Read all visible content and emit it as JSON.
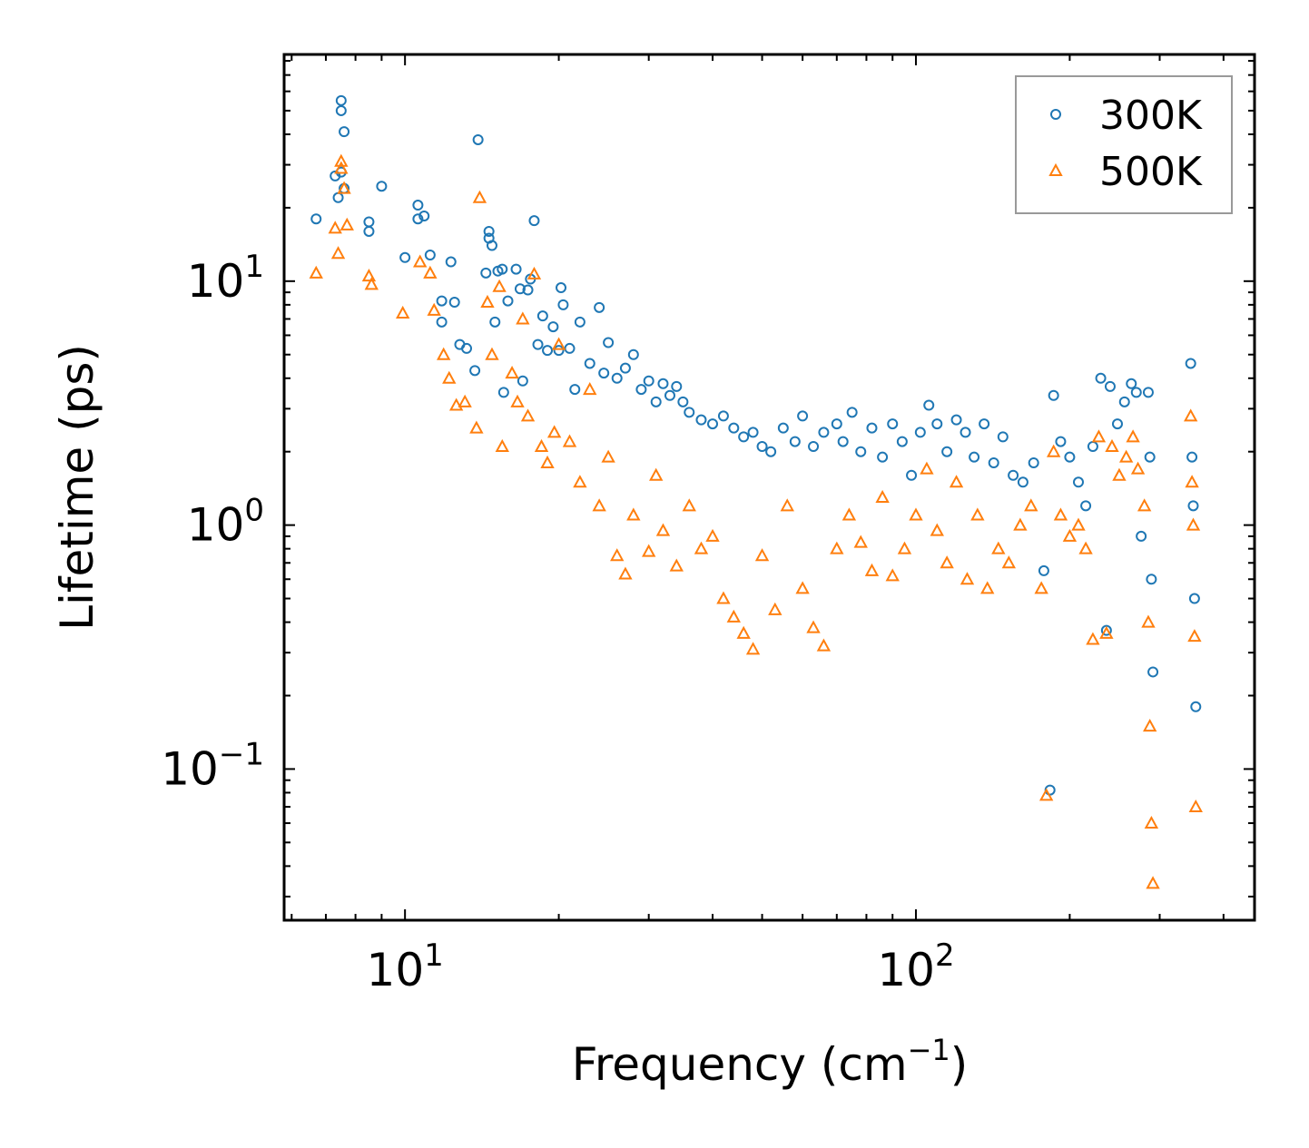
{
  "chart_data": {
    "type": "scatter",
    "xscale": "log",
    "yscale": "log",
    "xlabel": "Frequency (cm",
    "xlabel_sup": "−1",
    "xlabel_tail": ")",
    "ylabel": "Lifetime (ps)",
    "xlim": [
      5.8,
      460
    ],
    "ylim": [
      0.024,
      85
    ],
    "x_major_ticks": [
      {
        "value": 10,
        "base": "10",
        "exp": "1"
      },
      {
        "value": 100,
        "base": "10",
        "exp": "2"
      }
    ],
    "y_major_ticks": [
      {
        "value": 10,
        "base": "10",
        "exp": "1"
      },
      {
        "value": 1,
        "base": "10",
        "exp": "0"
      },
      {
        "value": 0.1,
        "base": "10",
        "exp": "−1"
      }
    ],
    "legend_position": "top-right",
    "series": [
      {
        "name": "300K",
        "marker": "circle",
        "color": "#1f77b4",
        "points": [
          [
            6.7,
            18
          ],
          [
            7.3,
            27
          ],
          [
            7.4,
            22
          ],
          [
            7.5,
            50
          ],
          [
            7.5,
            55
          ],
          [
            7.6,
            41
          ],
          [
            7.6,
            24
          ],
          [
            7.5,
            28
          ],
          [
            8.5,
            17.5
          ],
          [
            8.5,
            16
          ],
          [
            9.0,
            24.5
          ],
          [
            10.0,
            12.5
          ],
          [
            10.6,
            20.5
          ],
          [
            10.6,
            18
          ],
          [
            10.9,
            18.5
          ],
          [
            11.2,
            12.8
          ],
          [
            11.8,
            8.3
          ],
          [
            11.8,
            6.8
          ],
          [
            12.3,
            12
          ],
          [
            12.5,
            8.2
          ],
          [
            12.8,
            5.5
          ],
          [
            13.2,
            5.3
          ],
          [
            13.7,
            4.3
          ],
          [
            13.9,
            38
          ],
          [
            14.4,
            10.8
          ],
          [
            14.6,
            15
          ],
          [
            14.6,
            16
          ],
          [
            14.8,
            14
          ],
          [
            15.0,
            6.8
          ],
          [
            15.2,
            11
          ],
          [
            15.5,
            11.2
          ],
          [
            15.6,
            3.5
          ],
          [
            15.9,
            8.3
          ],
          [
            16.5,
            11.2
          ],
          [
            16.8,
            9.3
          ],
          [
            17.0,
            3.9
          ],
          [
            17.4,
            9.2
          ],
          [
            17.6,
            10.2
          ],
          [
            17.9,
            17.7
          ],
          [
            18.2,
            5.5
          ],
          [
            18.6,
            7.2
          ],
          [
            19.0,
            5.2
          ],
          [
            19.5,
            6.5
          ],
          [
            20.0,
            5.2
          ],
          [
            20.2,
            9.4
          ],
          [
            20.4,
            8.0
          ],
          [
            21.0,
            5.3
          ],
          [
            21.5,
            3.6
          ],
          [
            22.0,
            6.8
          ],
          [
            23.0,
            4.6
          ],
          [
            24.0,
            7.8
          ],
          [
            24.5,
            4.2
          ],
          [
            25.0,
            5.6
          ],
          [
            26.0,
            4.0
          ],
          [
            27.0,
            4.4
          ],
          [
            28.0,
            5.0
          ],
          [
            29.0,
            3.6
          ],
          [
            30.0,
            3.9
          ],
          [
            31.0,
            3.2
          ],
          [
            32.0,
            3.8
          ],
          [
            33.0,
            3.4
          ],
          [
            34.0,
            3.7
          ],
          [
            35.0,
            3.2
          ],
          [
            36.0,
            2.9
          ],
          [
            38.0,
            2.7
          ],
          [
            40.0,
            2.6
          ],
          [
            42.0,
            2.8
          ],
          [
            44.0,
            2.5
          ],
          [
            46.0,
            2.3
          ],
          [
            48.0,
            2.4
          ],
          [
            50.0,
            2.1
          ],
          [
            52.0,
            2.0
          ],
          [
            55.0,
            2.5
          ],
          [
            58.0,
            2.2
          ],
          [
            60.0,
            2.8
          ],
          [
            63.0,
            2.1
          ],
          [
            66.0,
            2.4
          ],
          [
            70.0,
            2.6
          ],
          [
            72.0,
            2.2
          ],
          [
            75.0,
            2.9
          ],
          [
            78.0,
            2.0
          ],
          [
            82.0,
            2.5
          ],
          [
            86.0,
            1.9
          ],
          [
            90.0,
            2.6
          ],
          [
            94.0,
            2.2
          ],
          [
            98.0,
            1.6
          ],
          [
            102.0,
            2.4
          ],
          [
            106.0,
            3.1
          ],
          [
            110.0,
            2.6
          ],
          [
            115.0,
            2.0
          ],
          [
            120.0,
            2.7
          ],
          [
            125.0,
            2.4
          ],
          [
            130.0,
            1.9
          ],
          [
            136.0,
            2.6
          ],
          [
            142.0,
            1.8
          ],
          [
            148.0,
            2.3
          ],
          [
            155.0,
            1.6
          ],
          [
            162.0,
            1.5
          ],
          [
            170.0,
            1.8
          ],
          [
            178.0,
            0.65
          ],
          [
            183.0,
            0.082
          ],
          [
            186.0,
            3.4
          ],
          [
            192.0,
            2.2
          ],
          [
            200.0,
            1.9
          ],
          [
            208.0,
            1.5
          ],
          [
            215.0,
            1.2
          ],
          [
            222.0,
            2.1
          ],
          [
            230.0,
            4.0
          ],
          [
            236.0,
            0.37
          ],
          [
            240.0,
            3.7
          ],
          [
            248.0,
            2.6
          ],
          [
            256.0,
            3.2
          ],
          [
            264.0,
            3.8
          ],
          [
            270.0,
            3.5
          ],
          [
            276.0,
            0.9
          ],
          [
            285.0,
            3.5
          ],
          [
            287.0,
            1.9
          ],
          [
            289.0,
            0.6
          ],
          [
            291.0,
            0.25
          ],
          [
            345.0,
            4.6
          ],
          [
            347.0,
            1.9
          ],
          [
            349.0,
            1.2
          ],
          [
            351.0,
            0.5
          ],
          [
            353.0,
            0.18
          ]
        ]
      },
      {
        "name": "500K",
        "marker": "triangle",
        "color": "#ff7f0e",
        "points": [
          [
            6.7,
            10.8
          ],
          [
            7.3,
            16.5
          ],
          [
            7.4,
            13
          ],
          [
            7.5,
            31
          ],
          [
            7.6,
            24
          ],
          [
            7.7,
            17
          ],
          [
            7.5,
            29
          ],
          [
            8.5,
            10.5
          ],
          [
            8.6,
            9.7
          ],
          [
            9.9,
            7.4
          ],
          [
            10.7,
            12
          ],
          [
            11.2,
            10.8
          ],
          [
            11.4,
            7.6
          ],
          [
            11.9,
            5.0
          ],
          [
            12.2,
            4.0
          ],
          [
            12.6,
            3.1
          ],
          [
            13.1,
            3.2
          ],
          [
            13.8,
            2.5
          ],
          [
            14.0,
            22
          ],
          [
            14.5,
            8.2
          ],
          [
            14.8,
            5.0
          ],
          [
            15.3,
            9.5
          ],
          [
            15.5,
            2.1
          ],
          [
            16.2,
            4.2
          ],
          [
            16.6,
            3.2
          ],
          [
            17.0,
            7.0
          ],
          [
            17.4,
            2.8
          ],
          [
            17.9,
            10.7
          ],
          [
            18.5,
            2.1
          ],
          [
            19.0,
            1.8
          ],
          [
            19.6,
            2.4
          ],
          [
            20.0,
            5.5
          ],
          [
            21.0,
            2.2
          ],
          [
            22.0,
            1.5
          ],
          [
            23.0,
            3.6
          ],
          [
            24.0,
            1.2
          ],
          [
            25.0,
            1.9
          ],
          [
            26.0,
            0.75
          ],
          [
            27.0,
            0.63
          ],
          [
            28.0,
            1.1
          ],
          [
            30.0,
            0.78
          ],
          [
            31.0,
            1.6
          ],
          [
            32.0,
            0.95
          ],
          [
            34.0,
            0.68
          ],
          [
            36.0,
            1.2
          ],
          [
            38.0,
            0.8
          ],
          [
            40.0,
            0.9
          ],
          [
            42.0,
            0.5
          ],
          [
            44.0,
            0.42
          ],
          [
            46.0,
            0.36
          ],
          [
            48.0,
            0.31
          ],
          [
            50.0,
            0.75
          ],
          [
            53.0,
            0.45
          ],
          [
            56.0,
            1.2
          ],
          [
            60.0,
            0.55
          ],
          [
            63.0,
            0.38
          ],
          [
            66.0,
            0.32
          ],
          [
            70.0,
            0.8
          ],
          [
            74.0,
            1.1
          ],
          [
            78.0,
            0.85
          ],
          [
            82.0,
            0.65
          ],
          [
            86.0,
            1.3
          ],
          [
            90.0,
            0.62
          ],
          [
            95.0,
            0.8
          ],
          [
            100.0,
            1.1
          ],
          [
            105.0,
            1.7
          ],
          [
            110.0,
            0.95
          ],
          [
            115.0,
            0.7
          ],
          [
            120.0,
            1.5
          ],
          [
            126.0,
            0.6
          ],
          [
            132.0,
            1.1
          ],
          [
            138.0,
            0.55
          ],
          [
            145.0,
            0.8
          ],
          [
            152.0,
            0.7
          ],
          [
            160.0,
            1.0
          ],
          [
            168.0,
            1.2
          ],
          [
            176.0,
            0.55
          ],
          [
            180.0,
            0.078
          ],
          [
            186.0,
            2.0
          ],
          [
            192.0,
            1.1
          ],
          [
            200.0,
            0.9
          ],
          [
            208.0,
            1.0
          ],
          [
            215.0,
            0.8
          ],
          [
            222.0,
            0.34
          ],
          [
            228.0,
            2.3
          ],
          [
            236.0,
            0.36
          ],
          [
            242.0,
            2.1
          ],
          [
            250.0,
            1.6
          ],
          [
            258.0,
            1.9
          ],
          [
            266.0,
            2.3
          ],
          [
            272.0,
            1.7
          ],
          [
            280.0,
            1.2
          ],
          [
            285.0,
            0.4
          ],
          [
            287.0,
            0.15
          ],
          [
            289.0,
            0.06
          ],
          [
            291.0,
            0.034
          ],
          [
            345.0,
            2.8
          ],
          [
            347.0,
            1.5
          ],
          [
            349.0,
            1.0
          ],
          [
            351.0,
            0.35
          ],
          [
            353.0,
            0.07
          ]
        ]
      }
    ]
  }
}
